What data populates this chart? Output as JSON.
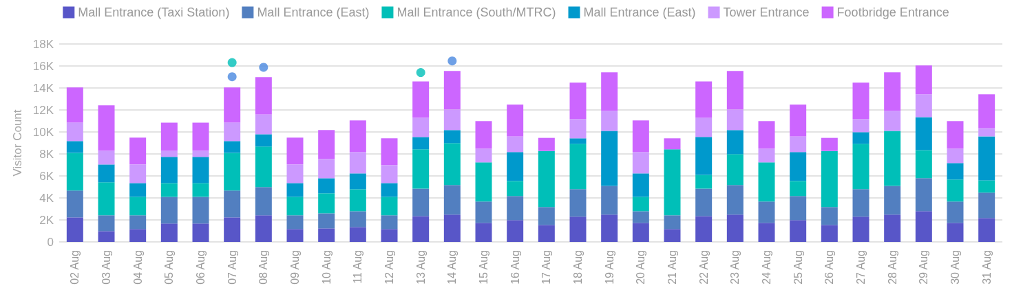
{
  "chart_data": {
    "type": "bar",
    "stacked": true,
    "ylabel": "Visitor Count",
    "legend": "top",
    "grid": "y",
    "categories": [
      "02 Aug",
      "03 Aug",
      "04 Aug",
      "05 Aug",
      "06 Aug",
      "07 Aug",
      "08 Aug",
      "09 Aug",
      "10 Aug",
      "11 Aug",
      "12 Aug",
      "13 Aug",
      "14 Aug",
      "15 Aug",
      "16 Aug",
      "17 Aug",
      "18 Aug",
      "19 Aug",
      "20 Aug",
      "21 Aug",
      "22 Aug",
      "23 Aug",
      "24 Aug",
      "25 Aug",
      "26 Aug",
      "27 Aug",
      "28 Aug",
      "29 Aug",
      "30 Aug",
      "31 Aug"
    ],
    "ylim": [
      0,
      18000
    ],
    "yticks": [
      0,
      {
        "value": 2000,
        "label": "2K"
      },
      {
        "value": 4000,
        "label": "4K"
      },
      {
        "value": 6000,
        "label": "6K"
      },
      {
        "value": 8000,
        "label": "8K"
      },
      {
        "value": 10000,
        "label": "10K"
      },
      {
        "value": 12000,
        "label": "12K"
      },
      {
        "value": 14000,
        "label": "14K"
      },
      {
        "value": 16000,
        "label": "16K"
      },
      {
        "value": 18000,
        "label": "18K"
      }
    ],
    "series": [
      {
        "name": "Mall Entrance (Taxi Station)",
        "color": "#5856c8",
        "values": [
          2230,
          980,
          1170,
          1670,
          1670,
          2230,
          2420,
          1170,
          1230,
          1350,
          1170,
          2350,
          2480,
          1730,
          1980,
          1540,
          2290,
          2480,
          1730,
          1170,
          2350,
          2480,
          1730,
          1980,
          1540,
          2290,
          2480,
          2790,
          1730,
          2170
        ]
      },
      {
        "name": "Mall Entrance (East)",
        "color": "#527fc0",
        "values": [
          2440,
          1440,
          1250,
          2430,
          2430,
          2440,
          2560,
          1250,
          1370,
          1440,
          1250,
          2500,
          2690,
          1940,
          2190,
          1630,
          2500,
          2620,
          1060,
          1250,
          2500,
          2690,
          1940,
          2190,
          1630,
          2500,
          2620,
          3000,
          1940,
          2310
        ]
      },
      {
        "name": "Mall Entrance (South/MTRC)",
        "color": "#00bfb8",
        "values": [
          3430,
          3000,
          1680,
          1250,
          1250,
          3430,
          3690,
          1680,
          1820,
          2000,
          1680,
          3570,
          3810,
          3560,
          1370,
          5100,
          4130,
          0,
          1310,
          6000,
          1250,
          2810,
          3560,
          1370,
          5100,
          4130,
          5000,
          2560,
          2000,
          1120
        ]
      },
      {
        "name": "Mall Entrance (East)",
        "color": "#0099cc",
        "values": [
          1070,
          1620,
          1250,
          2380,
          2380,
          1070,
          1120,
          1250,
          1370,
          1440,
          1250,
          1120,
          1190,
          0,
          2630,
          0,
          500,
          5000,
          2130,
          0,
          3440,
          2190,
          0,
          2630,
          0,
          1060,
          0,
          3000,
          1500,
          4000
        ]
      },
      {
        "name": "Tower Entrance",
        "color": "#cc99ff",
        "values": [
          1690,
          1250,
          1690,
          560,
          560,
          1690,
          1810,
          1690,
          1750,
          1940,
          1630,
          1750,
          1870,
          1250,
          1430,
          0,
          1750,
          1820,
          1940,
          0,
          1750,
          1870,
          1250,
          1430,
          0,
          1190,
          1820,
          2070,
          1310,
          750
        ]
      },
      {
        "name": "Footbridge Entrance",
        "color": "#cc66ff",
        "values": [
          3190,
          4130,
          2440,
          2560,
          2560,
          3190,
          3380,
          2440,
          2630,
          2870,
          2440,
          3310,
          3500,
          2500,
          2880,
          1190,
          3310,
          3500,
          2870,
          1000,
          3310,
          3500,
          2500,
          2880,
          1190,
          3310,
          3500,
          2620,
          2500,
          3070
        ]
      },
      {
        "type": "scatter",
        "color": "#00bfb8",
        "x": [
          "07 Aug",
          "13 Aug"
        ],
        "values": [
          16310,
          15400
        ]
      },
      {
        "type": "scatter",
        "color": "#4a88e0",
        "x": [
          "07 Aug",
          "08 Aug",
          "14 Aug"
        ],
        "values": [
          15020,
          15880,
          16460
        ]
      }
    ]
  }
}
